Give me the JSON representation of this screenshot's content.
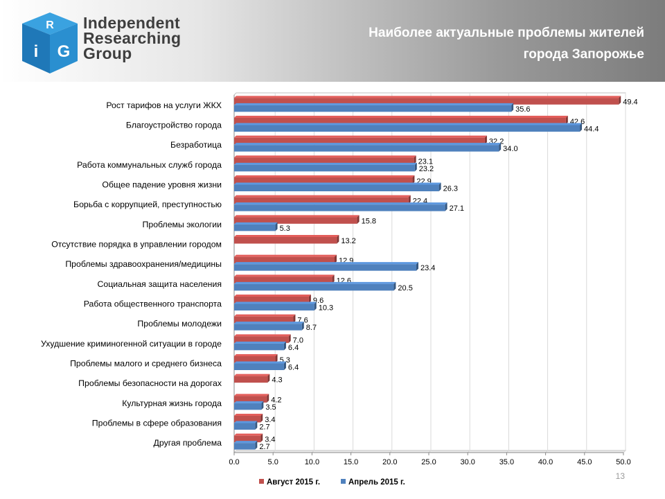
{
  "header": {
    "logo_letters": [
      "R",
      "i",
      "G"
    ],
    "logo_lines": [
      "Independent",
      "Researching",
      "Group"
    ],
    "title_lines": [
      "Наиболее актуальные проблемы жителей",
      "города Запорожье"
    ]
  },
  "page_number": "13",
  "colors": {
    "august": "#c0504d",
    "april": "#4f81bd",
    "logo_blue": "#2a8fd0",
    "grid": "#d9d9d9"
  },
  "chart_data": {
    "type": "bar",
    "orientation": "horizontal",
    "categories": [
      "Рост тарифов на услуги ЖКХ",
      "Благоустройство города",
      "Безработица",
      "Работа коммунальных служб города",
      "Общее падение уровня жизни",
      "Борьба с коррупцией, преступностью",
      "Проблемы экологии",
      "Отсутствие порядка в управлении городом",
      "Проблемы здравоохранения/медицины",
      "Социальная защита населения",
      "Работа общественного транспорта",
      "Проблемы молодежи",
      "Ухудшение криминогенной ситуации в городе",
      "Проблемы малого и среднего бизнеса",
      "Проблемы безопасности на дорогах",
      "Культурная жизнь города",
      "Проблемы в сфере образования",
      "Другая проблема"
    ],
    "series": [
      {
        "name": "Август 2015 г.",
        "color": "#c0504d",
        "values": [
          49.4,
          42.6,
          32.2,
          23.1,
          22.9,
          22.4,
          15.8,
          13.2,
          12.9,
          12.6,
          9.6,
          7.6,
          7.0,
          5.3,
          4.3,
          4.2,
          3.4,
          3.4
        ]
      },
      {
        "name": "Апрель 2015 г.",
        "color": "#4f81bd",
        "values": [
          35.6,
          44.4,
          34.0,
          23.2,
          26.3,
          27.1,
          5.3,
          null,
          23.4,
          20.5,
          10.3,
          8.7,
          6.4,
          6.4,
          null,
          3.5,
          2.7,
          2.7
        ]
      }
    ],
    "xlim": [
      0,
      50
    ],
    "xticks": [
      "0.0",
      "5.0",
      "10.0",
      "15.0",
      "20.0",
      "25.0",
      "30.0",
      "35.0",
      "40.0",
      "45.0",
      "50.0"
    ],
    "grid": true,
    "legend_position": "bottom"
  }
}
